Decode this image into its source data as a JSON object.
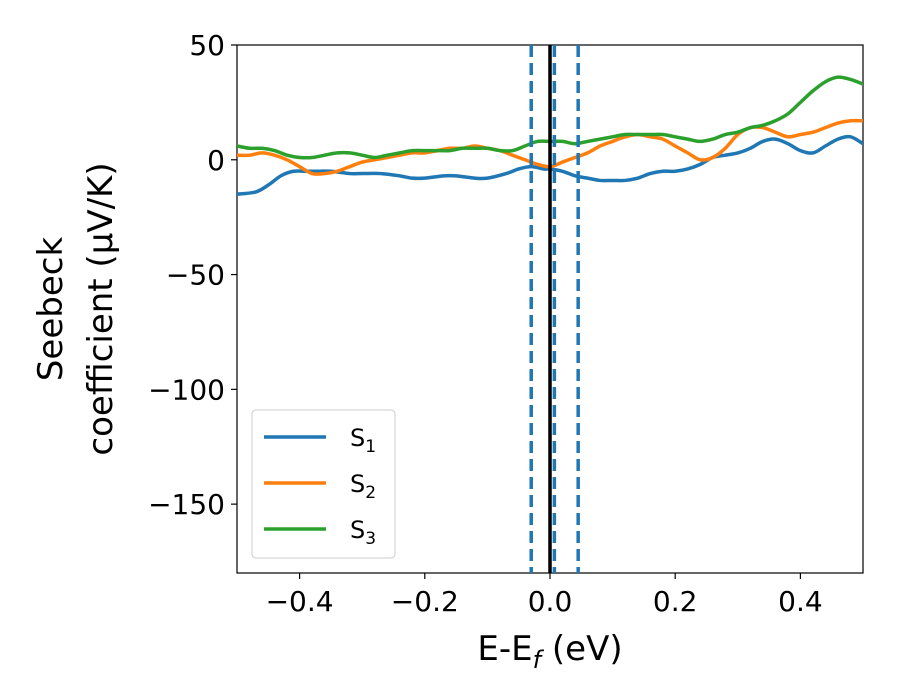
{
  "chart_data": {
    "type": "line",
    "xlabel_main": "E-E",
    "xlabel_sub": "f",
    "xlabel_unit": " (eV)",
    "ylabel_line1": "Seebeck",
    "ylabel_line2": "coefficient  (μV/K)",
    "xlim": [
      -0.5,
      0.5
    ],
    "ylim": [
      -180,
      50
    ],
    "xticks": [
      -0.4,
      -0.2,
      0.0,
      0.2,
      0.4
    ],
    "xtick_labels": [
      "−0.4",
      "−0.2",
      "0.0",
      "0.2",
      "0.4"
    ],
    "yticks": [
      50,
      0,
      -50,
      -100,
      -150
    ],
    "ytick_labels": [
      "50",
      "0",
      "−50",
      "−100",
      "−150"
    ],
    "fermi_line": {
      "x": 0.0,
      "color": "#000000"
    },
    "dashed_lines": {
      "x": [
        -0.03,
        0.007,
        0.045
      ],
      "color": "#1f77b4"
    },
    "legend_position": "lower-left",
    "series": [
      {
        "name": "S",
        "sub": "1",
        "color": "#1f77b4",
        "x": [
          -0.5,
          -0.47,
          -0.45,
          -0.43,
          -0.41,
          -0.39,
          -0.37,
          -0.35,
          -0.32,
          -0.3,
          -0.27,
          -0.24,
          -0.22,
          -0.2,
          -0.17,
          -0.15,
          -0.12,
          -0.1,
          -0.07,
          -0.05,
          -0.03,
          -0.01,
          0.0,
          0.02,
          0.04,
          0.06,
          0.08,
          0.1,
          0.12,
          0.14,
          0.16,
          0.18,
          0.2,
          0.22,
          0.24,
          0.26,
          0.28,
          0.3,
          0.32,
          0.34,
          0.36,
          0.38,
          0.4,
          0.42,
          0.44,
          0.46,
          0.48,
          0.5
        ],
        "y": [
          -15,
          -14,
          -11,
          -7,
          -5,
          -5,
          -5,
          -5,
          -6,
          -6,
          -6,
          -7,
          -8,
          -8,
          -7,
          -7,
          -8,
          -8,
          -6,
          -4,
          -3,
          -4,
          -4,
          -5,
          -7,
          -8,
          -9,
          -9,
          -9,
          -8,
          -6,
          -5,
          -5,
          -4,
          -2,
          1,
          2,
          3,
          5,
          8,
          9,
          7,
          4,
          3,
          6,
          9,
          10,
          7
        ]
      },
      {
        "name": "S",
        "sub": "2",
        "color": "#ff7f0e",
        "x": [
          -0.5,
          -0.48,
          -0.46,
          -0.44,
          -0.42,
          -0.4,
          -0.38,
          -0.36,
          -0.34,
          -0.32,
          -0.3,
          -0.28,
          -0.26,
          -0.24,
          -0.22,
          -0.2,
          -0.18,
          -0.16,
          -0.14,
          -0.12,
          -0.1,
          -0.08,
          -0.06,
          -0.04,
          -0.02,
          0.0,
          0.02,
          0.04,
          0.06,
          0.08,
          0.1,
          0.12,
          0.14,
          0.16,
          0.18,
          0.2,
          0.22,
          0.24,
          0.26,
          0.28,
          0.3,
          0.32,
          0.34,
          0.36,
          0.38,
          0.4,
          0.42,
          0.44,
          0.46,
          0.48,
          0.5
        ],
        "y": [
          2,
          2,
          3,
          2,
          0,
          -3,
          -6,
          -6,
          -5,
          -3,
          -1,
          0,
          1,
          2,
          3,
          3,
          4,
          5,
          5,
          6,
          5,
          4,
          2,
          0,
          -2,
          -3,
          -1,
          1,
          3,
          6,
          8,
          10,
          11,
          10,
          9,
          6,
          3,
          0,
          1,
          5,
          11,
          14,
          14,
          12,
          10,
          11,
          12,
          14,
          16,
          17,
          17
        ]
      },
      {
        "name": "S",
        "sub": "3",
        "color": "#2ca02c",
        "x": [
          -0.5,
          -0.48,
          -0.46,
          -0.44,
          -0.42,
          -0.4,
          -0.38,
          -0.36,
          -0.34,
          -0.32,
          -0.3,
          -0.28,
          -0.26,
          -0.24,
          -0.22,
          -0.2,
          -0.18,
          -0.16,
          -0.14,
          -0.12,
          -0.1,
          -0.08,
          -0.06,
          -0.04,
          -0.02,
          0.0,
          0.02,
          0.04,
          0.06,
          0.08,
          0.1,
          0.12,
          0.14,
          0.16,
          0.18,
          0.2,
          0.22,
          0.24,
          0.26,
          0.28,
          0.3,
          0.32,
          0.34,
          0.36,
          0.38,
          0.4,
          0.42,
          0.44,
          0.46,
          0.48,
          0.5
        ],
        "y": [
          6,
          5,
          5,
          4,
          2,
          1,
          1,
          2,
          3,
          3,
          2,
          1,
          2,
          3,
          4,
          4,
          4,
          4,
          5,
          5,
          5,
          4,
          4,
          6,
          8,
          8,
          8,
          7,
          8,
          9,
          10,
          11,
          11,
          11,
          11,
          10,
          9,
          8,
          9,
          11,
          12,
          14,
          15,
          17,
          20,
          25,
          30,
          34,
          36,
          35,
          33
        ],
        "note": "rendered tail"
      }
    ]
  }
}
